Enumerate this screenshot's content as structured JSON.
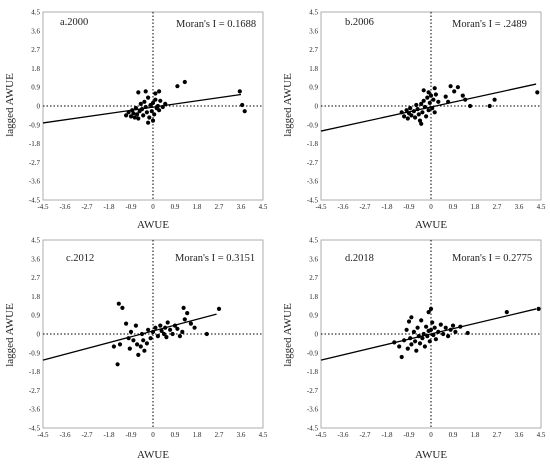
{
  "chart_data": [
    {
      "type": "scatter",
      "panel_label": "a.2000",
      "moran_label": "Moran's I = 0.1688",
      "xlabel": "AWUE",
      "ylabel": "lagged AWUE",
      "xlim": [
        -4.5,
        4.5
      ],
      "ylim": [
        -4.5,
        4.5
      ],
      "xticks": [
        "-4.5",
        "-3.6",
        "-2.7",
        "-1.8",
        "-0.9",
        "0",
        "0.9",
        "1.8",
        "2.7",
        "3.6",
        "4.5"
      ],
      "yticks": [
        "4.5",
        "3.6",
        "2.7",
        "1.8",
        "0.9",
        "0",
        "-0.9",
        "-1.8",
        "-2.7",
        "-3.6",
        "-4.5"
      ],
      "grid": false,
      "fit_line": {
        "x": [
          -4.5,
          3.6
        ],
        "y": [
          -0.81,
          0.55
        ]
      },
      "points": [
        [
          -1.1,
          -0.45
        ],
        [
          -1.0,
          -0.3
        ],
        [
          -0.9,
          -0.5
        ],
        [
          -0.85,
          -0.2
        ],
        [
          -0.8,
          -0.35
        ],
        [
          -0.7,
          -0.1
        ],
        [
          -0.65,
          -0.4
        ],
        [
          -0.6,
          -0.6
        ],
        [
          -0.55,
          -0.25
        ],
        [
          -0.5,
          0.1
        ],
        [
          -0.45,
          -0.15
        ],
        [
          -0.4,
          -0.45
        ],
        [
          -0.35,
          0.2
        ],
        [
          -0.3,
          -0.05
        ],
        [
          -0.25,
          -0.3
        ],
        [
          -0.2,
          0.4
        ],
        [
          -0.15,
          -0.55
        ],
        [
          -0.1,
          0.05
        ],
        [
          -0.05,
          -0.25
        ],
        [
          0.0,
          0.15
        ],
        [
          0.05,
          -0.4
        ],
        [
          0.1,
          0.3
        ],
        [
          0.15,
          -0.1
        ],
        [
          0.2,
          0.0
        ],
        [
          0.25,
          -0.2
        ],
        [
          0.3,
          0.25
        ],
        [
          0.4,
          -0.05
        ],
        [
          0.5,
          0.1
        ],
        [
          -0.6,
          0.65
        ],
        [
          -0.3,
          0.7
        ],
        [
          0.1,
          0.6
        ],
        [
          0.25,
          0.7
        ],
        [
          -0.2,
          -0.8
        ],
        [
          0.0,
          -0.7
        ],
        [
          -0.75,
          -0.55
        ],
        [
          1.0,
          0.95
        ],
        [
          1.3,
          1.15
        ],
        [
          3.55,
          0.7
        ],
        [
          3.65,
          0.05
        ],
        [
          3.75,
          -0.25
        ]
      ]
    },
    {
      "type": "scatter",
      "panel_label": "b.2006",
      "moran_label": "Moran's I = .2489",
      "xlabel": "AWUE",
      "ylabel": "lagged AWUE",
      "xlim": [
        -4.5,
        4.5
      ],
      "ylim": [
        -4.5,
        4.5
      ],
      "xticks": [
        "-4.5",
        "-3.6",
        "-2.7",
        "-1.8",
        "-0.9",
        "0",
        "0.9",
        "1.8",
        "2.7",
        "3.6",
        "4.5"
      ],
      "yticks": [
        "4.5",
        "3.6",
        "2.7",
        "1.8",
        "0.9",
        "0",
        "-0.9",
        "-1.8",
        "-2.7",
        "-3.6",
        "-4.5"
      ],
      "grid": false,
      "fit_line": {
        "x": [
          -4.5,
          4.3
        ],
        "y": [
          -1.2,
          1.05
        ]
      },
      "points": [
        [
          -1.2,
          -0.3
        ],
        [
          -1.1,
          -0.5
        ],
        [
          -1.0,
          -0.2
        ],
        [
          -0.95,
          -0.6
        ],
        [
          -0.9,
          -0.35
        ],
        [
          -0.85,
          -0.1
        ],
        [
          -0.8,
          -0.45
        ],
        [
          -0.7,
          -0.25
        ],
        [
          -0.65,
          -0.55
        ],
        [
          -0.6,
          0.05
        ],
        [
          -0.55,
          -0.15
        ],
        [
          -0.5,
          -0.4
        ],
        [
          -0.45,
          -0.7
        ],
        [
          -0.4,
          0.1
        ],
        [
          -0.35,
          -0.3
        ],
        [
          -0.3,
          0.25
        ],
        [
          -0.25,
          -0.05
        ],
        [
          -0.2,
          -0.5
        ],
        [
          -0.15,
          0.4
        ],
        [
          -0.1,
          -0.2
        ],
        [
          -0.05,
          0.15
        ],
        [
          0.0,
          0.5
        ],
        [
          0.05,
          -0.1
        ],
        [
          0.1,
          0.3
        ],
        [
          0.15,
          -0.3
        ],
        [
          0.2,
          0.55
        ],
        [
          0.3,
          0.2
        ],
        [
          -0.3,
          0.75
        ],
        [
          -0.1,
          0.65
        ],
        [
          0.15,
          0.85
        ],
        [
          0.8,
          0.95
        ],
        [
          0.95,
          0.7
        ],
        [
          1.1,
          0.9
        ],
        [
          1.3,
          0.5
        ],
        [
          1.4,
          0.3
        ],
        [
          0.6,
          0.45
        ],
        [
          0.7,
          0.2
        ],
        [
          1.6,
          0.0
        ],
        [
          2.4,
          0.0
        ],
        [
          2.6,
          0.3
        ],
        [
          4.35,
          0.65
        ],
        [
          -0.4,
          -0.85
        ]
      ]
    },
    {
      "type": "scatter",
      "panel_label": "c.2012",
      "moran_label": "Moran's I = 0.3151",
      "xlabel": "AWUE",
      "ylabel": "lagged AWUE",
      "xlim": [
        -4.5,
        4.5
      ],
      "ylim": [
        -4.5,
        4.5
      ],
      "xticks": [
        "-4.5",
        "-3.6",
        "-2.7",
        "-1.8",
        "-0.9",
        "0",
        "0.9",
        "1.8",
        "2.7",
        "3.6",
        "4.5"
      ],
      "yticks": [
        "4.5",
        "3.6",
        "2.7",
        "1.8",
        "0.9",
        "0",
        "-0.9",
        "-1.8",
        "-2.7",
        "-3.6",
        "-4.5"
      ],
      "grid": false,
      "fit_line": {
        "x": [
          -4.5,
          2.6
        ],
        "y": [
          -1.25,
          0.95
        ]
      },
      "points": [
        [
          -1.4,
          1.45
        ],
        [
          -1.25,
          1.25
        ],
        [
          -1.45,
          -1.45
        ],
        [
          -1.6,
          -0.6
        ],
        [
          -1.35,
          -0.5
        ],
        [
          -1.1,
          0.5
        ],
        [
          -1.0,
          -0.2
        ],
        [
          -0.95,
          -0.7
        ],
        [
          -0.9,
          0.1
        ],
        [
          -0.8,
          -0.3
        ],
        [
          -0.7,
          0.4
        ],
        [
          -0.65,
          -0.5
        ],
        [
          -0.6,
          -1.0
        ],
        [
          -0.5,
          -0.6
        ],
        [
          -0.45,
          0.0
        ],
        [
          -0.4,
          -0.3
        ],
        [
          -0.35,
          -0.8
        ],
        [
          -0.25,
          -0.45
        ],
        [
          -0.2,
          0.2
        ],
        [
          -0.1,
          -0.2
        ],
        [
          0.0,
          0.1
        ],
        [
          0.1,
          0.3
        ],
        [
          0.2,
          -0.1
        ],
        [
          0.3,
          0.4
        ],
        [
          0.35,
          0.15
        ],
        [
          0.45,
          0.0
        ],
        [
          0.5,
          0.3
        ],
        [
          0.55,
          -0.15
        ],
        [
          0.6,
          0.55
        ],
        [
          0.7,
          0.2
        ],
        [
          0.8,
          0.0
        ],
        [
          0.9,
          0.4
        ],
        [
          1.0,
          0.25
        ],
        [
          1.1,
          -0.1
        ],
        [
          1.2,
          0.1
        ],
        [
          1.3,
          0.7
        ],
        [
          1.25,
          1.25
        ],
        [
          1.4,
          1.0
        ],
        [
          1.55,
          0.5
        ],
        [
          1.7,
          0.3
        ],
        [
          2.2,
          0.0
        ],
        [
          2.7,
          1.2
        ]
      ]
    },
    {
      "type": "scatter",
      "panel_label": "d.2018",
      "moran_label": "Moran's I = 0.2775",
      "xlabel": "AWUE",
      "ylabel": "lagged AWUE",
      "xlim": [
        -4.5,
        4.5
      ],
      "ylim": [
        -4.5,
        4.5
      ],
      "xticks": [
        "-4.5",
        "-3.6",
        "-2.7",
        "-1.8",
        "-0.9",
        "0",
        "0.9",
        "1.8",
        "2.7",
        "3.6",
        "4.5"
      ],
      "yticks": [
        "4.5",
        "3.6",
        "2.7",
        "1.8",
        "0.9",
        "0",
        "-0.9",
        "-1.8",
        "-2.7",
        "-3.6",
        "-4.5"
      ],
      "grid": false,
      "fit_line": {
        "x": [
          -4.5,
          4.3
        ],
        "y": [
          -1.25,
          1.2
        ]
      },
      "points": [
        [
          -1.5,
          -0.4
        ],
        [
          -1.3,
          -0.6
        ],
        [
          -1.2,
          -1.1
        ],
        [
          -1.1,
          -0.3
        ],
        [
          -1.0,
          0.2
        ],
        [
          -0.95,
          -0.7
        ],
        [
          -0.9,
          0.6
        ],
        [
          -0.85,
          -0.2
        ],
        [
          -0.8,
          -0.5
        ],
        [
          -0.7,
          0.1
        ],
        [
          -0.65,
          -0.35
        ],
        [
          -0.6,
          -0.8
        ],
        [
          -0.55,
          0.3
        ],
        [
          -0.5,
          -0.1
        ],
        [
          -0.45,
          -0.45
        ],
        [
          -0.4,
          0.65
        ],
        [
          -0.35,
          -0.2
        ],
        [
          -0.3,
          0.0
        ],
        [
          -0.25,
          -0.6
        ],
        [
          -0.2,
          0.35
        ],
        [
          -0.15,
          -0.1
        ],
        [
          -0.1,
          0.15
        ],
        [
          -0.05,
          -0.35
        ],
        [
          0.0,
          0.2
        ],
        [
          0.05,
          0.55
        ],
        [
          0.1,
          -0.05
        ],
        [
          0.15,
          0.3
        ],
        [
          0.2,
          -0.25
        ],
        [
          0.3,
          0.1
        ],
        [
          0.4,
          0.45
        ],
        [
          0.5,
          0.0
        ],
        [
          0.6,
          0.3
        ],
        [
          0.7,
          -0.1
        ],
        [
          0.8,
          0.2
        ],
        [
          0.9,
          0.4
        ],
        [
          1.0,
          0.1
        ],
        [
          1.2,
          0.35
        ],
        [
          1.5,
          0.05
        ],
        [
          -0.8,
          0.8
        ],
        [
          -0.1,
          1.05
        ],
        [
          0.0,
          1.2
        ],
        [
          3.1,
          1.05
        ],
        [
          4.4,
          1.2
        ]
      ]
    }
  ]
}
